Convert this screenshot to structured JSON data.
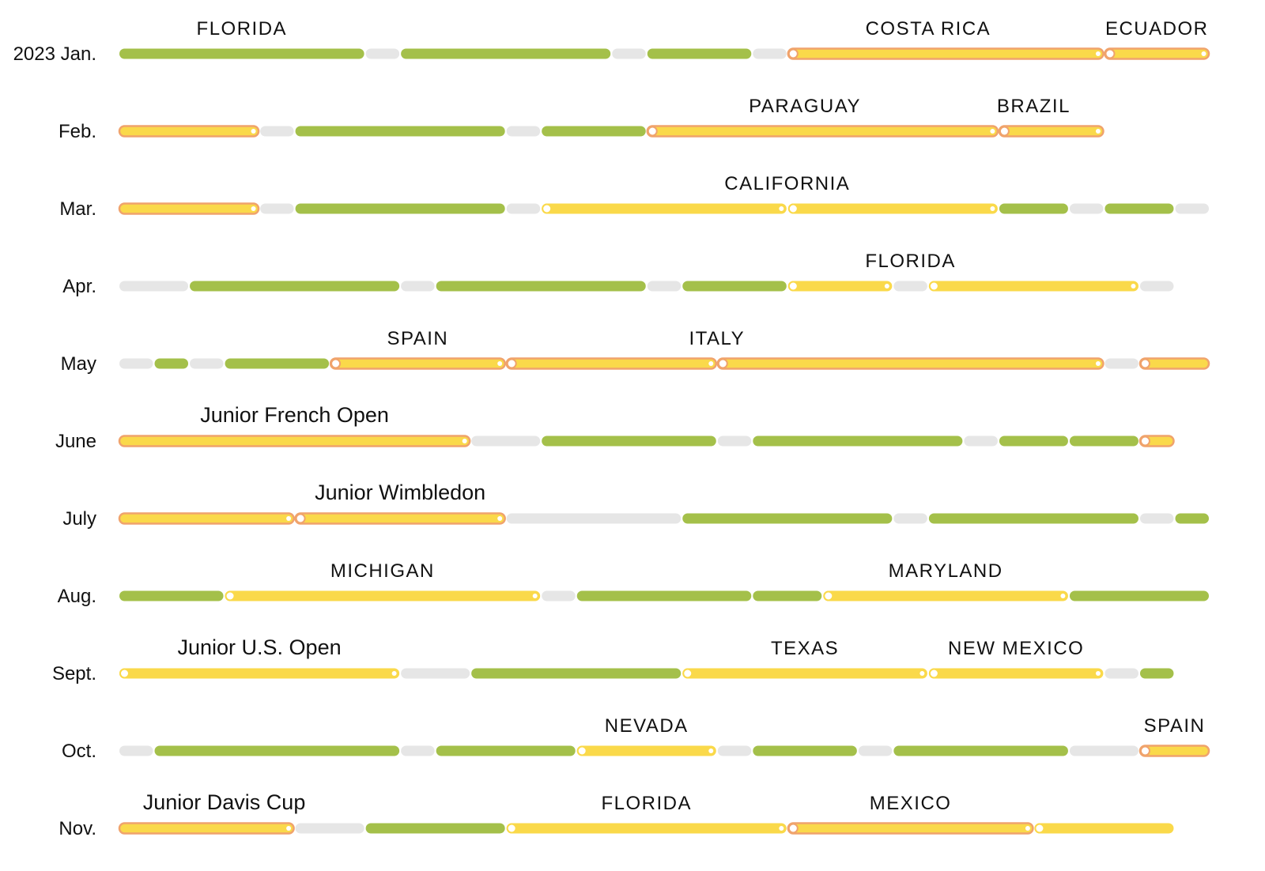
{
  "colors": {
    "home": "#a4c04a",
    "rest": "#e6e6e6",
    "travel_fill": "#fad94a",
    "travel_outline": "#f0a36c",
    "dot": "#ffffff"
  },
  "chart_data": {
    "type": "timeline",
    "rows": [
      {
        "month": "2023 Jan.",
        "segments": [
          {
            "kind": "green",
            "start": 1,
            "end": 8
          },
          {
            "kind": "gray",
            "start": 8,
            "end": 9
          },
          {
            "kind": "green",
            "start": 9,
            "end": 15
          },
          {
            "kind": "gray",
            "start": 15,
            "end": 16
          },
          {
            "kind": "green",
            "start": 16,
            "end": 19
          },
          {
            "kind": "gray",
            "start": 19,
            "end": 20
          },
          {
            "kind": "travel",
            "start": 20,
            "end": 29,
            "outline": true,
            "open_start": true,
            "open_end": false
          },
          {
            "kind": "travel",
            "start": 29,
            "end": 32,
            "outline": true,
            "open_start": true,
            "open_end": false
          }
        ],
        "labels": [
          {
            "text": "FLORIDA",
            "at": 4.5,
            "style": "place"
          },
          {
            "text": "COSTA RICA",
            "at": 24,
            "style": "place"
          },
          {
            "text": "ECUADOR",
            "at": 30.5,
            "style": "place"
          }
        ]
      },
      {
        "month": "Feb.",
        "segments": [
          {
            "kind": "travel",
            "start": 1,
            "end": 5,
            "outline": true,
            "open_start": false,
            "open_end": false
          },
          {
            "kind": "gray",
            "start": 5,
            "end": 6
          },
          {
            "kind": "green",
            "start": 6,
            "end": 12
          },
          {
            "kind": "gray",
            "start": 12,
            "end": 13
          },
          {
            "kind": "green",
            "start": 13,
            "end": 16
          },
          {
            "kind": "travel",
            "start": 16,
            "end": 26,
            "outline": true,
            "open_start": true,
            "open_end": false
          },
          {
            "kind": "travel",
            "start": 26,
            "end": 29,
            "outline": true,
            "open_start": true,
            "open_end": false
          }
        ],
        "labels": [
          {
            "text": "PARAGUAY",
            "at": 20.5,
            "style": "place"
          },
          {
            "text": "BRAZIL",
            "at": 27,
            "style": "place"
          }
        ]
      },
      {
        "month": "Mar.",
        "segments": [
          {
            "kind": "travel",
            "start": 1,
            "end": 5,
            "outline": true,
            "open_start": false,
            "open_end": false
          },
          {
            "kind": "gray",
            "start": 5,
            "end": 6
          },
          {
            "kind": "green",
            "start": 6,
            "end": 12
          },
          {
            "kind": "gray",
            "start": 12,
            "end": 13
          },
          {
            "kind": "travel",
            "start": 13,
            "end": 20,
            "outline": false,
            "open_start": true,
            "open_end": false
          },
          {
            "kind": "travel",
            "start": 20,
            "end": 26,
            "outline": false,
            "open_start": true,
            "open_end": false
          },
          {
            "kind": "green",
            "start": 26,
            "end": 28
          },
          {
            "kind": "gray",
            "start": 28,
            "end": 29
          },
          {
            "kind": "green",
            "start": 29,
            "end": 31
          },
          {
            "kind": "gray",
            "start": 31,
            "end": 32
          }
        ],
        "labels": [
          {
            "text": "CALIFORNIA",
            "at": 20,
            "style": "place"
          }
        ]
      },
      {
        "month": "Apr.",
        "segments": [
          {
            "kind": "gray",
            "start": 1,
            "end": 3
          },
          {
            "kind": "green",
            "start": 3,
            "end": 9
          },
          {
            "kind": "gray",
            "start": 9,
            "end": 10
          },
          {
            "kind": "green",
            "start": 10,
            "end": 16
          },
          {
            "kind": "gray",
            "start": 16,
            "end": 17
          },
          {
            "kind": "green",
            "start": 17,
            "end": 20
          },
          {
            "kind": "travel",
            "start": 20,
            "end": 23,
            "outline": false,
            "open_start": true,
            "open_end": false
          },
          {
            "kind": "gray",
            "start": 23,
            "end": 24
          },
          {
            "kind": "travel",
            "start": 24,
            "end": 30,
            "outline": false,
            "open_start": true,
            "open_end": false
          },
          {
            "kind": "gray",
            "start": 30,
            "end": 31
          }
        ],
        "labels": [
          {
            "text": "FLORIDA",
            "at": 23.5,
            "style": "place"
          }
        ]
      },
      {
        "month": "May",
        "segments": [
          {
            "kind": "gray",
            "start": 1,
            "end": 2
          },
          {
            "kind": "green",
            "start": 2,
            "end": 3
          },
          {
            "kind": "gray",
            "start": 3,
            "end": 4
          },
          {
            "kind": "green",
            "start": 4,
            "end": 7
          },
          {
            "kind": "travel",
            "start": 7,
            "end": 12,
            "outline": true,
            "open_start": true,
            "open_end": false
          },
          {
            "kind": "travel",
            "start": 12,
            "end": 18,
            "outline": true,
            "open_start": true,
            "open_end": false
          },
          {
            "kind": "travel",
            "start": 18,
            "end": 29,
            "outline": true,
            "open_start": true,
            "open_end": false
          },
          {
            "kind": "gray",
            "start": 29,
            "end": 30
          },
          {
            "kind": "travel",
            "start": 30,
            "end": 32,
            "outline": true,
            "open_start": true,
            "open_end": true
          }
        ],
        "labels": [
          {
            "text": "SPAIN",
            "at": 9.5,
            "style": "place"
          },
          {
            "text": "ITALY",
            "at": 18,
            "style": "place"
          }
        ]
      },
      {
        "month": "June",
        "segments": [
          {
            "kind": "travel",
            "start": 1,
            "end": 11,
            "outline": true,
            "open_start": false,
            "open_end": false
          },
          {
            "kind": "gray",
            "start": 11,
            "end": 13
          },
          {
            "kind": "green",
            "start": 13,
            "end": 18
          },
          {
            "kind": "gray",
            "start": 18,
            "end": 19
          },
          {
            "kind": "green",
            "start": 19,
            "end": 25
          },
          {
            "kind": "gray",
            "start": 25,
            "end": 26
          },
          {
            "kind": "green",
            "start": 26,
            "end": 28
          },
          {
            "kind": "green",
            "start": 28,
            "end": 30
          },
          {
            "kind": "travel",
            "start": 30,
            "end": 31,
            "outline": true,
            "open_start": true,
            "open_end": true
          }
        ],
        "labels": [
          {
            "text": "Junior French Open",
            "at": 6,
            "style": "event"
          }
        ]
      },
      {
        "month": "July",
        "segments": [
          {
            "kind": "travel",
            "start": 1,
            "end": 6,
            "outline": true,
            "open_start": false,
            "open_end": false
          },
          {
            "kind": "travel",
            "start": 6,
            "end": 12,
            "outline": true,
            "open_start": true,
            "open_end": false
          },
          {
            "kind": "gray",
            "start": 12,
            "end": 17
          },
          {
            "kind": "green",
            "start": 17,
            "end": 23
          },
          {
            "kind": "gray",
            "start": 23,
            "end": 24
          },
          {
            "kind": "green",
            "start": 24,
            "end": 30
          },
          {
            "kind": "gray",
            "start": 30,
            "end": 31
          },
          {
            "kind": "green",
            "start": 31,
            "end": 32
          }
        ],
        "labels": [
          {
            "text": "Junior Wimbledon",
            "at": 9,
            "style": "event"
          }
        ]
      },
      {
        "month": "Aug.",
        "segments": [
          {
            "kind": "green",
            "start": 1,
            "end": 4
          },
          {
            "kind": "travel",
            "start": 4,
            "end": 13,
            "outline": false,
            "open_start": true,
            "open_end": false
          },
          {
            "kind": "gray",
            "start": 13,
            "end": 14
          },
          {
            "kind": "green",
            "start": 14,
            "end": 19
          },
          {
            "kind": "green",
            "start": 19,
            "end": 21
          },
          {
            "kind": "travel",
            "start": 21,
            "end": 28,
            "outline": false,
            "open_start": true,
            "open_end": false
          },
          {
            "kind": "green",
            "start": 28,
            "end": 32
          }
        ],
        "labels": [
          {
            "text": "MICHIGAN",
            "at": 8.5,
            "style": "place"
          },
          {
            "text": "MARYLAND",
            "at": 24.5,
            "style": "place"
          }
        ]
      },
      {
        "month": "Sept.",
        "segments": [
          {
            "kind": "travel",
            "start": 1,
            "end": 9,
            "outline": false,
            "open_start": true,
            "open_end": false
          },
          {
            "kind": "gray",
            "start": 9,
            "end": 11
          },
          {
            "kind": "green",
            "start": 11,
            "end": 17
          },
          {
            "kind": "travel",
            "start": 17,
            "end": 24,
            "outline": false,
            "open_start": true,
            "open_end": false
          },
          {
            "kind": "travel",
            "start": 24,
            "end": 29,
            "outline": false,
            "open_start": true,
            "open_end": false
          },
          {
            "kind": "gray",
            "start": 29,
            "end": 30
          },
          {
            "kind": "green",
            "start": 30,
            "end": 31
          }
        ],
        "labels": [
          {
            "text": "Junior U.S. Open",
            "at": 5,
            "style": "event"
          },
          {
            "text": "TEXAS",
            "at": 20.5,
            "style": "place"
          },
          {
            "text": "NEW MEXICO",
            "at": 26.5,
            "style": "place"
          }
        ]
      },
      {
        "month": "Oct.",
        "segments": [
          {
            "kind": "gray",
            "start": 1,
            "end": 2
          },
          {
            "kind": "green",
            "start": 2,
            "end": 9
          },
          {
            "kind": "gray",
            "start": 9,
            "end": 10
          },
          {
            "kind": "green",
            "start": 10,
            "end": 14
          },
          {
            "kind": "travel",
            "start": 14,
            "end": 18,
            "outline": false,
            "open_start": true,
            "open_end": false
          },
          {
            "kind": "gray",
            "start": 18,
            "end": 19
          },
          {
            "kind": "green",
            "start": 19,
            "end": 22
          },
          {
            "kind": "gray",
            "start": 22,
            "end": 23
          },
          {
            "kind": "green",
            "start": 23,
            "end": 28
          },
          {
            "kind": "gray",
            "start": 28,
            "end": 30
          },
          {
            "kind": "travel",
            "start": 30,
            "end": 32,
            "outline": true,
            "open_start": true,
            "open_end": true
          }
        ],
        "labels": [
          {
            "text": "NEVADA",
            "at": 16,
            "style": "place"
          },
          {
            "text": "SPAIN",
            "at": 31,
            "style": "place"
          }
        ]
      },
      {
        "month": "Nov.",
        "segments": [
          {
            "kind": "travel",
            "start": 1,
            "end": 6,
            "outline": true,
            "open_start": false,
            "open_end": false
          },
          {
            "kind": "gray",
            "start": 6,
            "end": 8
          },
          {
            "kind": "green",
            "start": 8,
            "end": 12
          },
          {
            "kind": "travel",
            "start": 12,
            "end": 20,
            "outline": false,
            "open_start": true,
            "open_end": false
          },
          {
            "kind": "travel",
            "start": 20,
            "end": 27,
            "outline": true,
            "open_start": true,
            "open_end": false
          },
          {
            "kind": "travel",
            "start": 27,
            "end": 31,
            "outline": false,
            "open_start": true,
            "open_end": true
          }
        ],
        "labels": [
          {
            "text": "Junior Davis Cup",
            "at": 4,
            "style": "event"
          },
          {
            "text": "FLORIDA",
            "at": 16,
            "style": "place"
          },
          {
            "text": "MEXICO",
            "at": 23.5,
            "style": "place"
          }
        ]
      }
    ]
  }
}
